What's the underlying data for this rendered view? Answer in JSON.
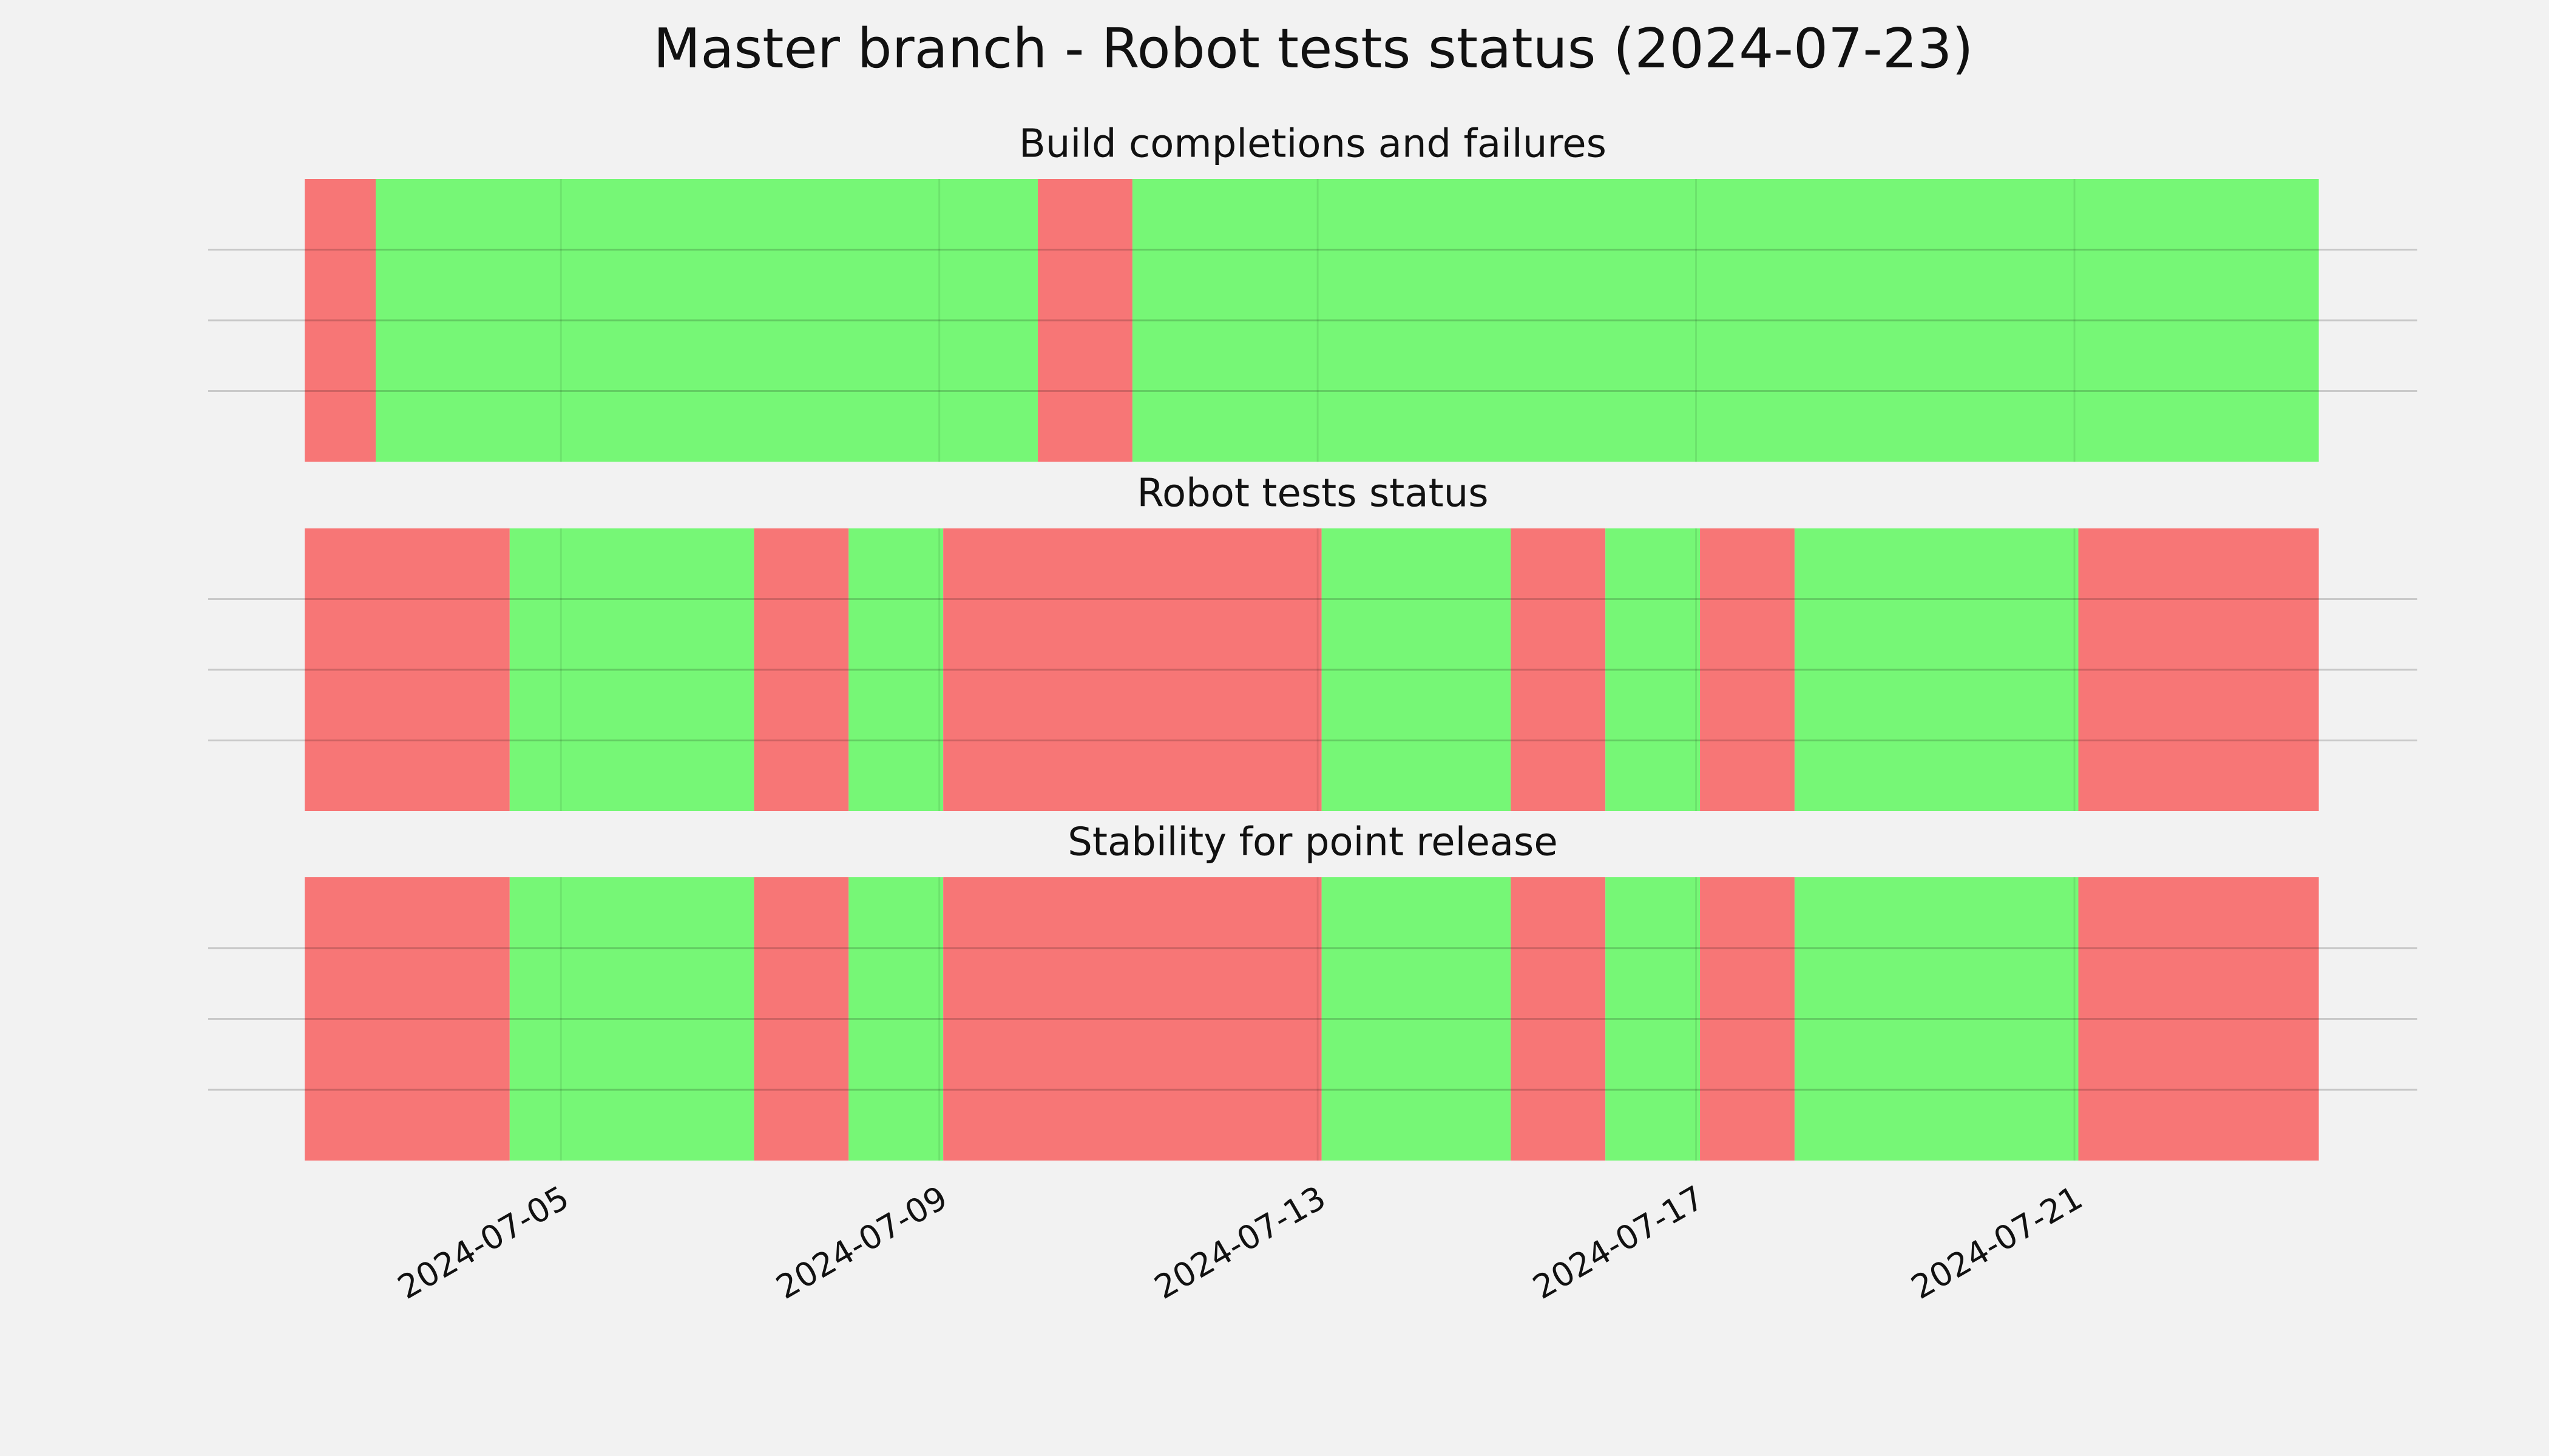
{
  "title": "Master branch - Robot tests status (2024-07-23)",
  "chart_data": [
    {
      "type": "timeline",
      "title": "Build completions and failures",
      "x": [
        "2024-07-02T07:00",
        "2024-07-03T01:00",
        "2024-07-10T01:00",
        "2024-07-11T01:00",
        "2024-07-23T14:00"
      ],
      "colors": [
        "#f77676",
        "#76f776",
        "#f77676",
        "#76f776"
      ],
      "xlim": [
        "2024-07-01T06:30",
        "2024-07-24T15:00"
      ],
      "xticks": [
        "2024-07-05",
        "2024-07-09",
        "2024-07-13",
        "2024-07-17",
        "2024-07-21"
      ],
      "tick_labels": false,
      "ylim": [
        0,
        1
      ],
      "yticks": [
        0.25,
        0.5,
        0.75
      ],
      "grid": true
    },
    {
      "type": "timeline",
      "title": "Robot tests status",
      "x": [
        "2024-07-02T07:00",
        "2024-07-04T11:00",
        "2024-07-07T01:00",
        "2024-07-08T01:00",
        "2024-07-09T01:00",
        "2024-07-13T01:00",
        "2024-07-15T01:00",
        "2024-07-16T01:00",
        "2024-07-17T01:00",
        "2024-07-18T01:00",
        "2024-07-21T01:00",
        "2024-07-23T14:00"
      ],
      "colors": [
        "#f77676",
        "#76f776",
        "#f77676",
        "#76f776",
        "#f77676",
        "#76f776",
        "#f77676",
        "#76f776",
        "#f77676",
        "#76f776",
        "#f77676"
      ],
      "xlim": [
        "2024-07-01T06:30",
        "2024-07-24T15:00"
      ],
      "xticks": [
        "2024-07-05",
        "2024-07-09",
        "2024-07-13",
        "2024-07-17",
        "2024-07-21"
      ],
      "tick_labels": false,
      "ylim": [
        0,
        1
      ],
      "yticks": [
        0.25,
        0.5,
        0.75
      ],
      "grid": true
    },
    {
      "type": "timeline",
      "title": "Stability for point release",
      "x": [
        "2024-07-02T07:00",
        "2024-07-04T11:00",
        "2024-07-07T01:00",
        "2024-07-08T01:00",
        "2024-07-09T01:00",
        "2024-07-13T01:00",
        "2024-07-15T01:00",
        "2024-07-16T01:00",
        "2024-07-17T01:00",
        "2024-07-18T01:00",
        "2024-07-21T01:00",
        "2024-07-23T14:00"
      ],
      "colors": [
        "#f77676",
        "#76f776",
        "#f77676",
        "#76f776",
        "#f77676",
        "#76f776",
        "#f77676",
        "#76f776",
        "#f77676",
        "#76f776",
        "#f77676"
      ],
      "xlim": [
        "2024-07-01T06:30",
        "2024-07-24T15:00"
      ],
      "xticks": [
        "2024-07-05",
        "2024-07-09",
        "2024-07-13",
        "2024-07-17",
        "2024-07-21"
      ],
      "tick_labels": true,
      "ylim": [
        0,
        1
      ],
      "yticks": [
        0.25,
        0.5,
        0.75
      ],
      "grid": true
    }
  ]
}
